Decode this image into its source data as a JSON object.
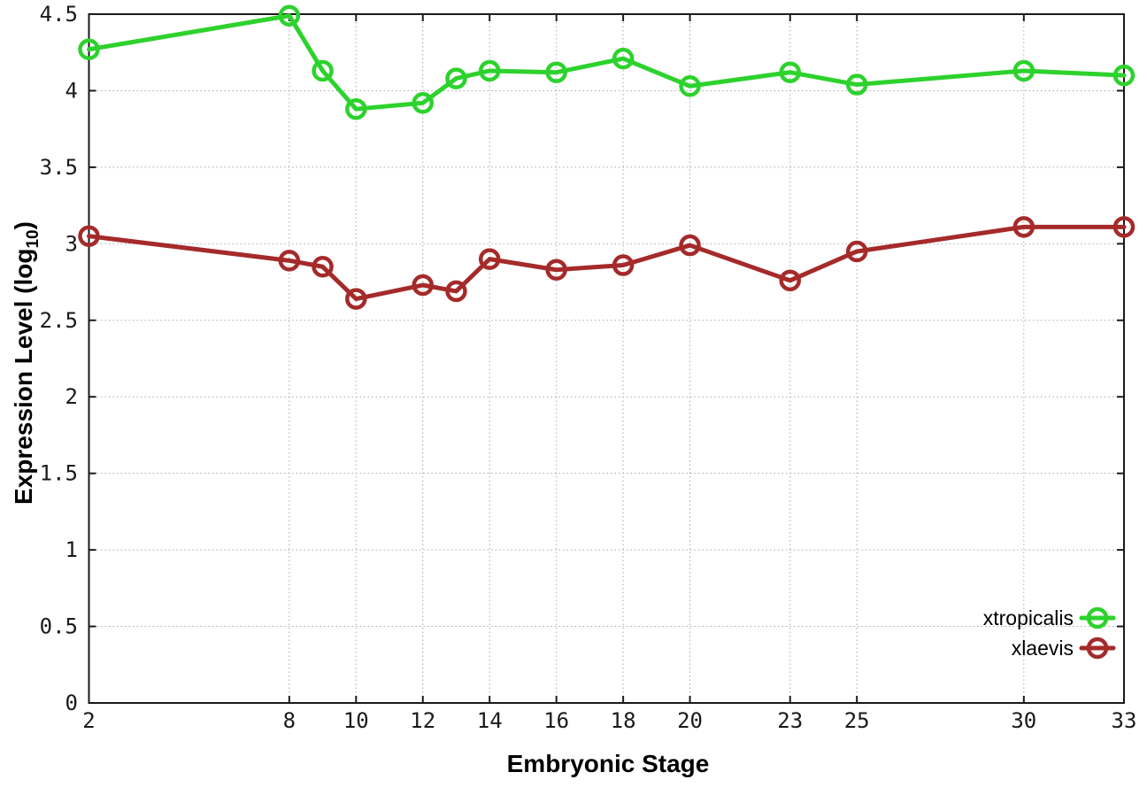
{
  "chart_data": {
    "type": "line",
    "title": "",
    "xlabel": "Embryonic Stage",
    "ylabel": {
      "text": "Expression Level (log",
      "subscript": "10",
      "suffix": ")"
    },
    "x": [
      2,
      8,
      9,
      10,
      12,
      13,
      14,
      16,
      18,
      20,
      23,
      25,
      30,
      33
    ],
    "xticks": [
      2,
      8,
      10,
      12,
      14,
      16,
      18,
      20,
      23,
      25,
      30,
      33
    ],
    "yticks": [
      0,
      0.5,
      1,
      1.5,
      2,
      2.5,
      3,
      3.5,
      4,
      4.5
    ],
    "xlim": [
      2,
      33
    ],
    "ylim": [
      0,
      4.5
    ],
    "grid": true,
    "legend_position": "bottom-right",
    "series": [
      {
        "name": "xtropicalis",
        "color": "#2dd22d",
        "values": [
          4.27,
          4.49,
          4.13,
          3.88,
          3.92,
          4.08,
          4.13,
          4.12,
          4.21,
          4.03,
          4.12,
          4.04,
          4.13,
          4.1
        ]
      },
      {
        "name": "xlaevis",
        "color": "#a52a2a",
        "values": [
          3.05,
          2.89,
          2.85,
          2.64,
          2.73,
          2.69,
          2.9,
          2.83,
          2.86,
          2.99,
          2.76,
          2.95,
          3.11,
          3.11
        ]
      }
    ],
    "colors": {
      "border": "#1a1a1a",
      "grid": "#aaaaaa",
      "tick_text": "#1a1a1a",
      "background": "#ffffff"
    }
  }
}
